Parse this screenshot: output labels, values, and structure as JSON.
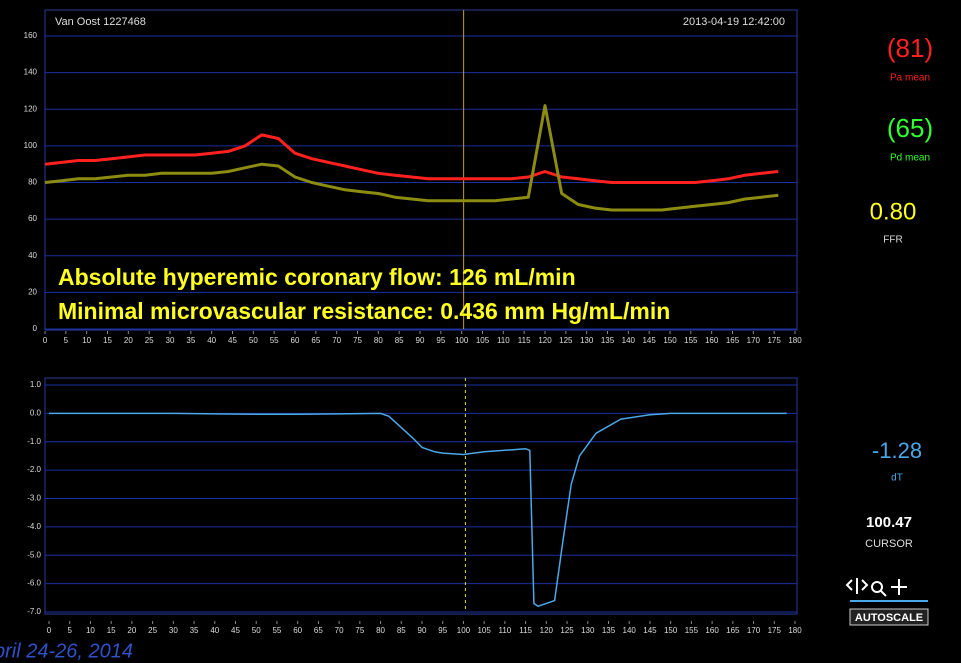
{
  "header": {
    "patient": "Van Oost 1227468",
    "datetime": "2013-04-19 12:42:00"
  },
  "footer": "pril 24-26, 2014",
  "panel": {
    "pa": "(81)",
    "pd": "(65)",
    "ffr": {
      "value": "0.80",
      "label": "FFR"
    },
    "dt": {
      "value": -1.28,
      "label": "dT"
    },
    "autoscale": "AUTOSCALE"
  },
  "cursor": {
    "value": 100.47,
    "label": "CURSOR"
  },
  "chart_data": [
    {
      "type": "line",
      "annotations": [
        "Absolute hyperemic coronary flow: 126 mL/min",
        "Minimal microvascular resistance: 0.436 mm Hg/mL/min"
      ],
      "x": [
        0,
        4,
        8,
        12,
        16,
        20,
        24,
        28,
        32,
        36,
        40,
        44,
        48,
        52,
        56,
        60,
        64,
        68,
        72,
        76,
        80,
        84,
        88,
        92,
        96,
        100,
        104,
        108,
        112,
        116,
        120,
        124,
        128,
        132,
        136,
        140,
        144,
        148,
        152,
        156,
        160,
        164,
        168,
        172,
        176
      ],
      "series": [
        {
          "name": "Pa mean",
          "color": "#ff2020",
          "values": [
            90,
            91,
            92,
            92,
            93,
            94,
            95,
            95,
            95,
            95,
            96,
            97,
            100,
            106,
            104,
            96,
            93,
            91,
            89,
            87,
            85,
            84,
            83,
            82,
            82,
            82,
            82,
            82,
            82,
            83,
            86,
            83,
            82,
            81,
            80,
            80,
            80,
            80,
            80,
            80,
            81,
            82,
            84,
            85,
            86
          ]
        },
        {
          "name": "Pd mean",
          "color": "#8c8c12",
          "values": [
            80,
            81,
            82,
            82,
            83,
            84,
            84,
            85,
            85,
            85,
            85,
            86,
            88,
            90,
            89,
            83,
            80,
            78,
            76,
            75,
            74,
            72,
            71,
            70,
            70,
            70,
            70,
            70,
            71,
            72,
            122,
            74,
            68,
            66,
            65,
            65,
            65,
            65,
            66,
            67,
            68,
            69,
            71,
            72,
            73
          ]
        }
      ],
      "xlim": [
        0,
        180
      ],
      "xticks": [
        0,
        5,
        10,
        15,
        20,
        25,
        30,
        35,
        40,
        45,
        50,
        55,
        60,
        65,
        70,
        75,
        80,
        85,
        90,
        95,
        100,
        105,
        110,
        115,
        120,
        125,
        130,
        135,
        140,
        145,
        150,
        155,
        160,
        165,
        170,
        175,
        180
      ],
      "ylim": [
        0,
        160
      ],
      "yticks": [
        0,
        20,
        40,
        60,
        80,
        100,
        120,
        140,
        160
      ],
      "grid": true
    },
    {
      "type": "line",
      "x": [
        0,
        10,
        20,
        30,
        40,
        50,
        60,
        70,
        80,
        82,
        85,
        88,
        90,
        93,
        95,
        100,
        105,
        110,
        115,
        116,
        117,
        118,
        122,
        124,
        126,
        128,
        132,
        138,
        145,
        150,
        160,
        170,
        178
      ],
      "series": [
        {
          "name": "dT",
          "color": "#4aa8e8",
          "values": [
            0,
            0,
            0,
            0,
            -0.02,
            -0.03,
            -0.03,
            -0.02,
            0,
            -0.1,
            -0.5,
            -0.9,
            -1.2,
            -1.35,
            -1.4,
            -1.45,
            -1.35,
            -1.3,
            -1.25,
            -1.3,
            -6.7,
            -6.8,
            -6.6,
            -4.5,
            -2.5,
            -1.5,
            -0.7,
            -0.2,
            -0.05,
            0,
            0,
            0,
            0
          ]
        }
      ],
      "xlim": [
        0,
        180
      ],
      "xticks": [
        0,
        5,
        10,
        15,
        20,
        25,
        30,
        35,
        40,
        45,
        50,
        55,
        60,
        65,
        70,
        75,
        80,
        85,
        90,
        95,
        100,
        105,
        110,
        115,
        120,
        125,
        130,
        135,
        140,
        145,
        150,
        155,
        160,
        165,
        170,
        175,
        180
      ],
      "ylim": [
        -7,
        1
      ],
      "yticks": [
        {
          "value": 1,
          "label": "1.0"
        },
        {
          "value": 0,
          "label": "0.0"
        },
        {
          "value": -1,
          "label": "-1.0"
        },
        {
          "value": -2,
          "label": "-2.0"
        },
        {
          "value": -3,
          "label": "-3.0"
        },
        {
          "value": -4,
          "label": "-4.0"
        },
        {
          "value": -5,
          "label": "-5.0"
        },
        {
          "value": -6,
          "label": "-6.0"
        },
        {
          "value": -7,
          "label": "-7.0"
        }
      ],
      "grid": true
    }
  ]
}
